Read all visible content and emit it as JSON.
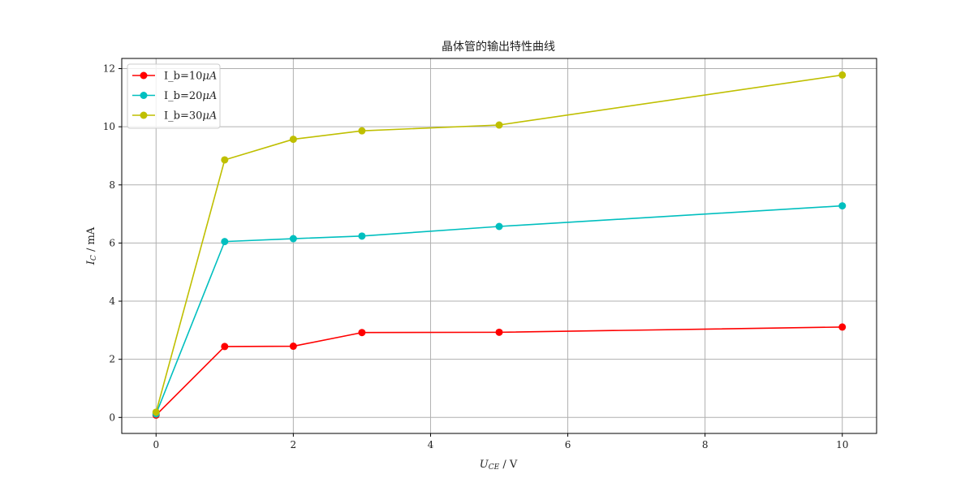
{
  "chart_data": {
    "type": "line",
    "title": "晶体管的输出特性曲线",
    "xlabel": {
      "main": "U",
      "sub": "CE",
      "unit": " / V"
    },
    "ylabel": {
      "main": "I",
      "sub": "C",
      "unit": " / mA"
    },
    "xlim": [
      -0.5,
      10.5
    ],
    "ylim": [
      -0.55,
      12.35
    ],
    "xticks": [
      0,
      2,
      4,
      6,
      8,
      10
    ],
    "yticks": [
      0,
      2,
      4,
      6,
      8,
      10,
      12
    ],
    "grid": true,
    "legend_position": "top-left",
    "x": [
      0,
      1,
      2,
      3,
      5,
      10
    ],
    "series": [
      {
        "name": "I_b=10",
        "name_math": "μA",
        "color": "#ff0000",
        "values": [
          0.08,
          2.44,
          2.45,
          2.92,
          2.93,
          3.11
        ]
      },
      {
        "name": "I_b=20",
        "name_math": "μA",
        "color": "#00bfbf",
        "values": [
          0.12,
          6.05,
          6.15,
          6.24,
          6.57,
          7.28
        ]
      },
      {
        "name": "I_b=30",
        "name_math": "μA",
        "color": "#bfbf00",
        "values": [
          0.18,
          8.86,
          9.57,
          9.86,
          10.06,
          11.78
        ]
      }
    ]
  }
}
